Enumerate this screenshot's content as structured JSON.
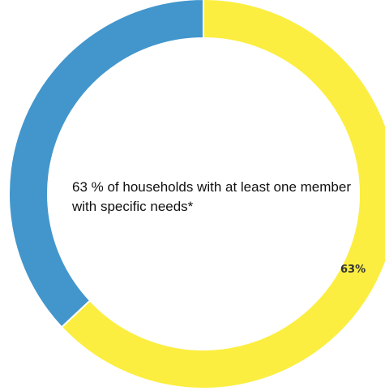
{
  "chart_data": {
    "type": "pie",
    "variant": "donut",
    "title": "",
    "center_text": "63 % of households with at least one member with specific needs*",
    "slices": [
      {
        "name": "",
        "value": 63,
        "label": "63%",
        "color": "#FBEE40"
      },
      {
        "name": "",
        "value": 37,
        "label": "",
        "color": "#4296CC"
      }
    ],
    "start_angle_deg": 0,
    "direction": "clockwise"
  }
}
